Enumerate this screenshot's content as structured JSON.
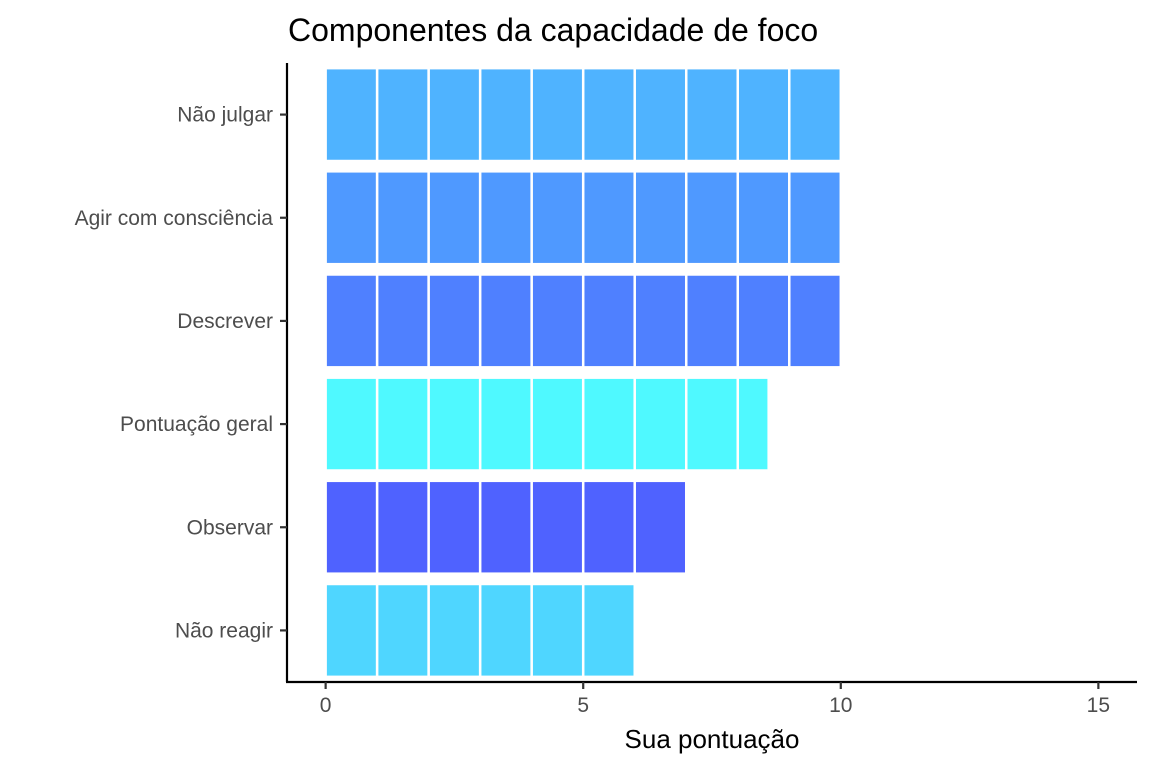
{
  "chart_data": {
    "type": "bar",
    "orientation": "horizontal",
    "title": "Componentes da capacidade de foco",
    "xlabel": "Sua pontuação",
    "ylabel": "",
    "xlim": [
      -0.75,
      15.75
    ],
    "xticks": [
      0,
      5,
      10,
      15
    ],
    "grid": false,
    "legend": "none",
    "categories": [
      "Não julgar",
      "Agir com consciência",
      "Descrever",
      "Pontuação geral",
      "Observar",
      "Não reagir"
    ],
    "values": [
      10,
      10,
      10,
      8.6,
      7,
      6
    ],
    "colors": [
      "#4fb3ff",
      "#4f99ff",
      "#4f80ff",
      "#4ff9ff",
      "#4f62ff",
      "#4fd6ff"
    ]
  }
}
